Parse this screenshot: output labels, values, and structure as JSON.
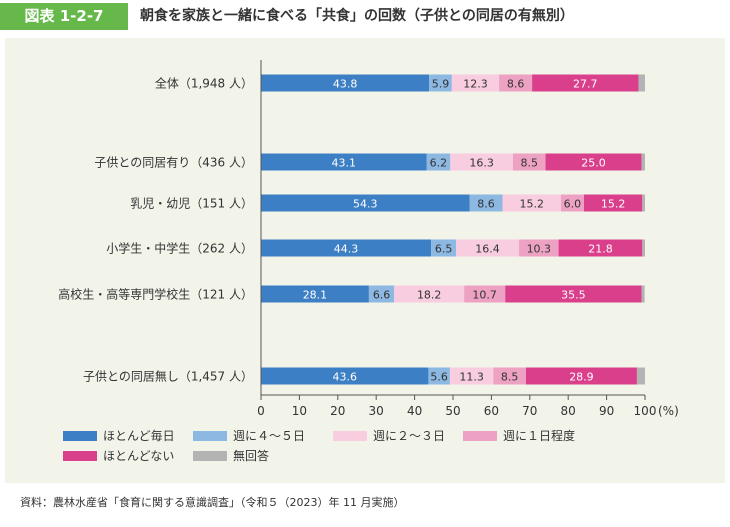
{
  "header": {
    "badge": "図表 1-2-7",
    "title": "朝食を家族と一緒に食べる「共食」の回数（子供との同居の有無別）"
  },
  "source": "資料：農林水産省「食育に関する意識調査」（令和５（2023）年 11 月実施）",
  "chart_data": {
    "type": "bar",
    "orientation": "horizontal",
    "stacked": true,
    "categories": [
      "全体（1,948 人）",
      "子供との同居有り（436 人）",
      "乳児・幼児（151 人）",
      "小学生・中学生（262 人）",
      "高校生・高等専門学校生（121 人）",
      "子供との同居無し（1,457 人）"
    ],
    "series": [
      {
        "name": "ほとんど毎日",
        "color": "#3d7fc4",
        "values": [
          43.8,
          43.1,
          54.3,
          44.3,
          28.1,
          43.6
        ]
      },
      {
        "name": "週に４～５日",
        "color": "#8cb8e2",
        "values": [
          5.9,
          6.2,
          8.6,
          6.5,
          6.6,
          5.6
        ]
      },
      {
        "name": "週に２～３日",
        "color": "#f8cde0",
        "values": [
          12.3,
          16.3,
          15.2,
          16.4,
          18.2,
          11.3
        ]
      },
      {
        "name": "週に１日程度",
        "color": "#eda2c4",
        "values": [
          8.6,
          8.5,
          6.0,
          10.3,
          10.7,
          8.5
        ]
      },
      {
        "name": "ほとんどない",
        "color": "#da3f8c",
        "values": [
          27.7,
          25.0,
          15.2,
          21.8,
          35.5,
          28.9
        ]
      },
      {
        "name": "無回答",
        "color": "#b3b3b3",
        "values": [
          1.7,
          0.9,
          0.7,
          0.7,
          0.8,
          2.1
        ]
      }
    ],
    "xlim": [
      0,
      100
    ],
    "xticks": [
      "0",
      "10",
      "20",
      "30",
      "40",
      "50",
      "60",
      "70",
      "80",
      "90",
      "100"
    ],
    "x_unit": "(%)",
    "legend_position": "bottom"
  }
}
